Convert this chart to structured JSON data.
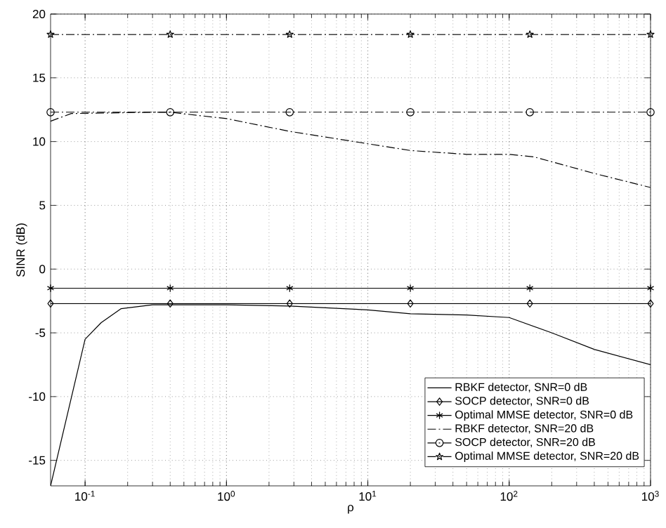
{
  "chart_data": {
    "type": "line",
    "xlabel": "ρ",
    "ylabel": "SINR (dB)",
    "log": "x",
    "grid": true,
    "legend": "bottom right",
    "xlim": [
      0.057,
      1000
    ],
    "ylim": [
      -17,
      20
    ],
    "xticks": [
      {
        "value": 0.1,
        "label": "10$^{-1}$"
      },
      {
        "value": 1,
        "label": "10$^{0}$"
      },
      {
        "value": 10,
        "label": "10$^{1}$"
      },
      {
        "value": 100,
        "label": "10$^{2}$"
      },
      {
        "value": 1000,
        "label": "10$^{3}$"
      }
    ],
    "yticks": [
      -15,
      -10,
      -5,
      0,
      5,
      10,
      15,
      20
    ],
    "series": [
      {
        "name": "RBKF detector, SNR=0 dB",
        "color": "#000000",
        "line_style": "solid",
        "marker": "none",
        "x": [
          0.057,
          0.1,
          0.13,
          0.18,
          0.3,
          1,
          2.8,
          10,
          20,
          50,
          100,
          200,
          400,
          1000
        ],
        "values": [
          -17,
          -5.5,
          -4.2,
          -3.1,
          -2.8,
          -2.8,
          -2.9,
          -3.2,
          -3.5,
          -3.6,
          -3.8,
          -5,
          -6.3,
          -7.5
        ]
      },
      {
        "name": "SOCP detector, SNR=0 dB",
        "color": "#000000",
        "line_style": "solid",
        "marker": "diamond",
        "x": [
          0.057,
          0.4,
          2.8,
          20,
          140,
          1000
        ],
        "values": [
          -2.7,
          -2.7,
          -2.7,
          -2.7,
          -2.7,
          -2.7
        ]
      },
      {
        "name": "Optimal MMSE detector, SNR=0 dB",
        "color": "#000000",
        "line_style": "solid",
        "marker": "cross",
        "x": [
          0.057,
          0.4,
          2.8,
          20,
          140,
          1000
        ],
        "values": [
          -1.5,
          -1.5,
          -1.5,
          -1.5,
          -1.5,
          -1.5
        ]
      },
      {
        "name": "RBKF detector, SNR=20 dB",
        "color": "#000000",
        "line_style": "dashdot",
        "marker": "none",
        "x": [
          0.057,
          0.08,
          0.3,
          0.4,
          1,
          2.8,
          8,
          20,
          50,
          100,
          150,
          400,
          1000
        ],
        "values": [
          11.6,
          12.2,
          12.3,
          12.3,
          11.8,
          10.8,
          10,
          9.3,
          9,
          9,
          8.8,
          7.5,
          6.4
        ]
      },
      {
        "name": "SOCP detector, SNR=20 dB",
        "color": "#000000",
        "line_style": "dashdot",
        "marker": "circle",
        "x": [
          0.057,
          0.4,
          2.8,
          20,
          140,
          1000
        ],
        "values": [
          12.3,
          12.3,
          12.3,
          12.3,
          12.3,
          12.3
        ]
      },
      {
        "name": "Optimal MMSE detector, SNR=20 dB",
        "color": "#000000",
        "line_style": "dashdot",
        "marker": "star",
        "x": [
          0.057,
          0.4,
          2.8,
          20,
          140,
          1000
        ],
        "values": [
          18.4,
          18.4,
          18.4,
          18.4,
          18.4,
          18.4
        ]
      }
    ]
  }
}
